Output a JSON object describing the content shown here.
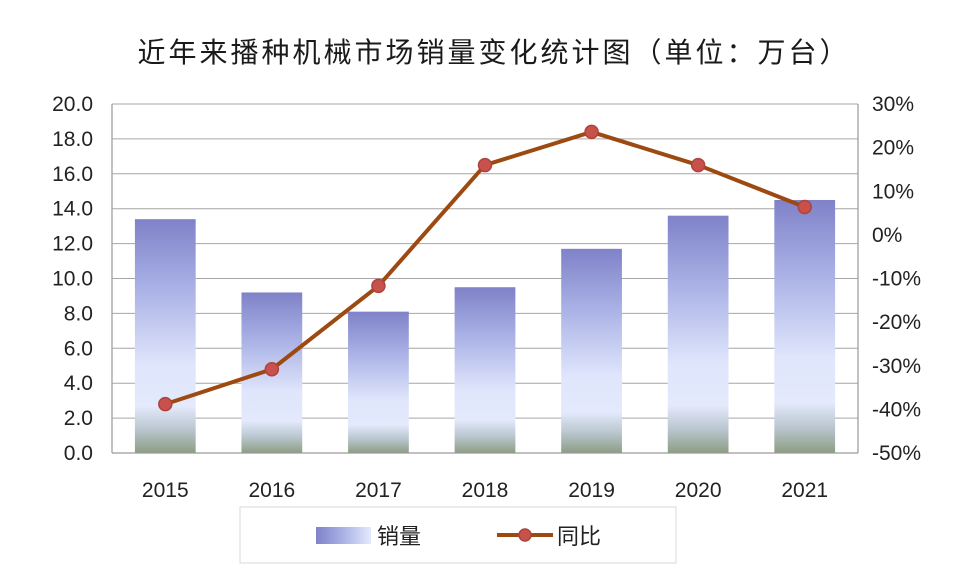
{
  "chart_data": {
    "type": "bar",
    "title": "近年来播种机械市场销量变化统计图（单位：万台）",
    "categories": [
      "2015",
      "2016",
      "2017",
      "2018",
      "2019",
      "2020",
      "2021"
    ],
    "series": [
      {
        "name": "销量",
        "type": "bar",
        "axis": "left",
        "values": [
          13.4,
          9.2,
          8.1,
          9.5,
          11.7,
          13.6,
          14.5
        ]
      },
      {
        "name": "同比",
        "type": "line",
        "axis": "right",
        "unit": "%",
        "values": [
          -38.8,
          -30.8,
          -11.7,
          16.0,
          23.6,
          16.0,
          6.4
        ]
      }
    ],
    "y_left": {
      "min": 0,
      "max": 20,
      "step": 2,
      "tick_labels": [
        "0.0",
        "2.0",
        "4.0",
        "6.0",
        "8.0",
        "10.0",
        "12.0",
        "14.0",
        "16.0",
        "18.0",
        "20.0"
      ]
    },
    "y_right": {
      "min": -50,
      "max": 30,
      "step": 10,
      "tick_labels": [
        "-50%",
        "-40%",
        "-30%",
        "-20%",
        "-10%",
        "0%",
        "10%",
        "20%",
        "30%"
      ]
    },
    "grid": true,
    "legend_position": "bottom",
    "colors": {
      "bar_gradient": [
        "#7f82c8",
        "#aab2e6",
        "#dfe5fb",
        "#e4eafc",
        "#b9c6cf",
        "#8d9d82"
      ],
      "line": "#9c4a12",
      "marker_fill": "#c9514b",
      "marker_stroke": "#ad433d"
    }
  }
}
